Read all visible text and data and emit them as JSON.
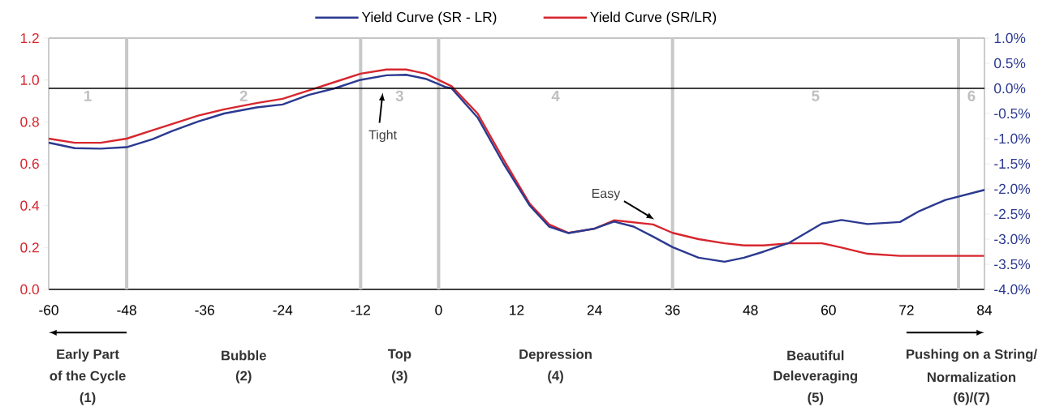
{
  "chart_data": {
    "type": "line",
    "series": [
      {
        "name": "Yield Curve (SR - LR)",
        "color": "#2b3990",
        "axis": "y2",
        "x": [
          -60,
          -56,
          -52,
          -48,
          -44,
          -41,
          -37,
          -33,
          -28,
          -24,
          -20,
          -16,
          -12,
          -8,
          -5,
          -2,
          1,
          2,
          6,
          10,
          14,
          17,
          20,
          24,
          27,
          30,
          33,
          36,
          40,
          44,
          47,
          50,
          54,
          59,
          62,
          66,
          71,
          74,
          78,
          84
        ],
        "values": [
          -1.08,
          -1.19,
          -1.2,
          -1.17,
          -1.01,
          -0.85,
          -0.66,
          -0.5,
          -0.38,
          -0.32,
          -0.13,
          0.0,
          0.17,
          0.26,
          0.27,
          0.19,
          0.03,
          0.0,
          -0.58,
          -1.5,
          -2.33,
          -2.75,
          -2.88,
          -2.79,
          -2.65,
          -2.75,
          -2.95,
          -3.16,
          -3.37,
          -3.45,
          -3.37,
          -3.25,
          -3.07,
          -2.69,
          -2.62,
          -2.7,
          -2.66,
          -2.44,
          -2.22,
          -2.02
        ]
      },
      {
        "name": "Yield Curve (SR/LR)",
        "color": "#d7262e",
        "x": [
          -60,
          -56,
          -52,
          -48,
          -44,
          -40,
          -37,
          -33,
          -28,
          -24,
          -20,
          -16,
          -12,
          -8,
          -5,
          -2,
          2,
          6,
          10,
          14,
          17,
          20,
          24,
          27,
          30,
          33,
          36,
          40,
          44,
          47,
          50,
          54,
          59,
          62,
          66,
          71,
          76,
          84
        ],
        "values": [
          0.72,
          0.7,
          0.7,
          0.72,
          0.76,
          0.8,
          0.83,
          0.86,
          0.89,
          0.91,
          0.95,
          0.99,
          1.03,
          1.05,
          1.05,
          1.03,
          0.97,
          0.84,
          0.62,
          0.41,
          0.31,
          0.27,
          0.29,
          0.33,
          0.32,
          0.31,
          0.27,
          0.24,
          0.22,
          0.21,
          0.21,
          0.22,
          0.22,
          0.2,
          0.17,
          0.16,
          0.16,
          0.16
        ]
      }
    ],
    "xlim": [
      -60,
      84
    ],
    "xticks": [
      -60,
      -48,
      -36,
      -24,
      -12,
      0,
      12,
      24,
      36,
      48,
      60,
      72,
      84
    ],
    "ylim": [
      0,
      1.2
    ],
    "yticks": [
      {
        "value": 0,
        "label": "0.0"
      },
      0.2,
      0.4,
      0.6,
      0.8,
      {
        "value": 1,
        "label": "1.0"
      },
      1.2
    ],
    "y2lim": [
      -4,
      1
    ],
    "y2ticks": [
      {
        "value": -4,
        "label": "-4.0%"
      },
      {
        "value": -3.5,
        "label": "-3.5%"
      },
      {
        "value": -3,
        "label": "-3.0%"
      },
      {
        "value": -2.5,
        "label": "-2.5%"
      },
      {
        "value": -2,
        "label": "-2.0%"
      },
      {
        "value": -1.5,
        "label": "-1.5%"
      },
      {
        "value": -1,
        "label": "-1.0%"
      },
      {
        "value": -0.5,
        "label": "-0.5%"
      },
      {
        "value": 0,
        "label": "0.0%"
      },
      {
        "value": 0.5,
        "label": "0.5%"
      },
      {
        "value": 1,
        "label": "1.0%"
      }
    ],
    "ref_lines": [
      {
        "axis": "x",
        "value": -48,
        "color": "#c8c8c8"
      },
      {
        "axis": "x",
        "value": -12,
        "color": "#c8c8c8"
      },
      {
        "axis": "x",
        "value": 0,
        "color": "#c8c8c8"
      },
      {
        "axis": "x",
        "value": 36,
        "color": "#c8c8c8"
      },
      {
        "axis": "x",
        "value": 80,
        "color": "#c8c8c8"
      },
      {
        "axis": "y2",
        "value": 0,
        "color": "#000000"
      }
    ],
    "annotations": [
      "1",
      "2",
      "3",
      "4",
      "5",
      "6",
      "Tight",
      "Easy",
      "Early Part",
      "of the Cycle",
      "(1)",
      "Bubble",
      "(2)",
      "Top",
      "(3)",
      "Depression",
      "(4)",
      "Beautiful",
      "Deleveraging",
      "(5)",
      "Pushing on a String/",
      "Normalization",
      "(6)/(7)"
    ],
    "legend": "top",
    "marker": "none",
    "line_style": "solid",
    "grid": false
  }
}
